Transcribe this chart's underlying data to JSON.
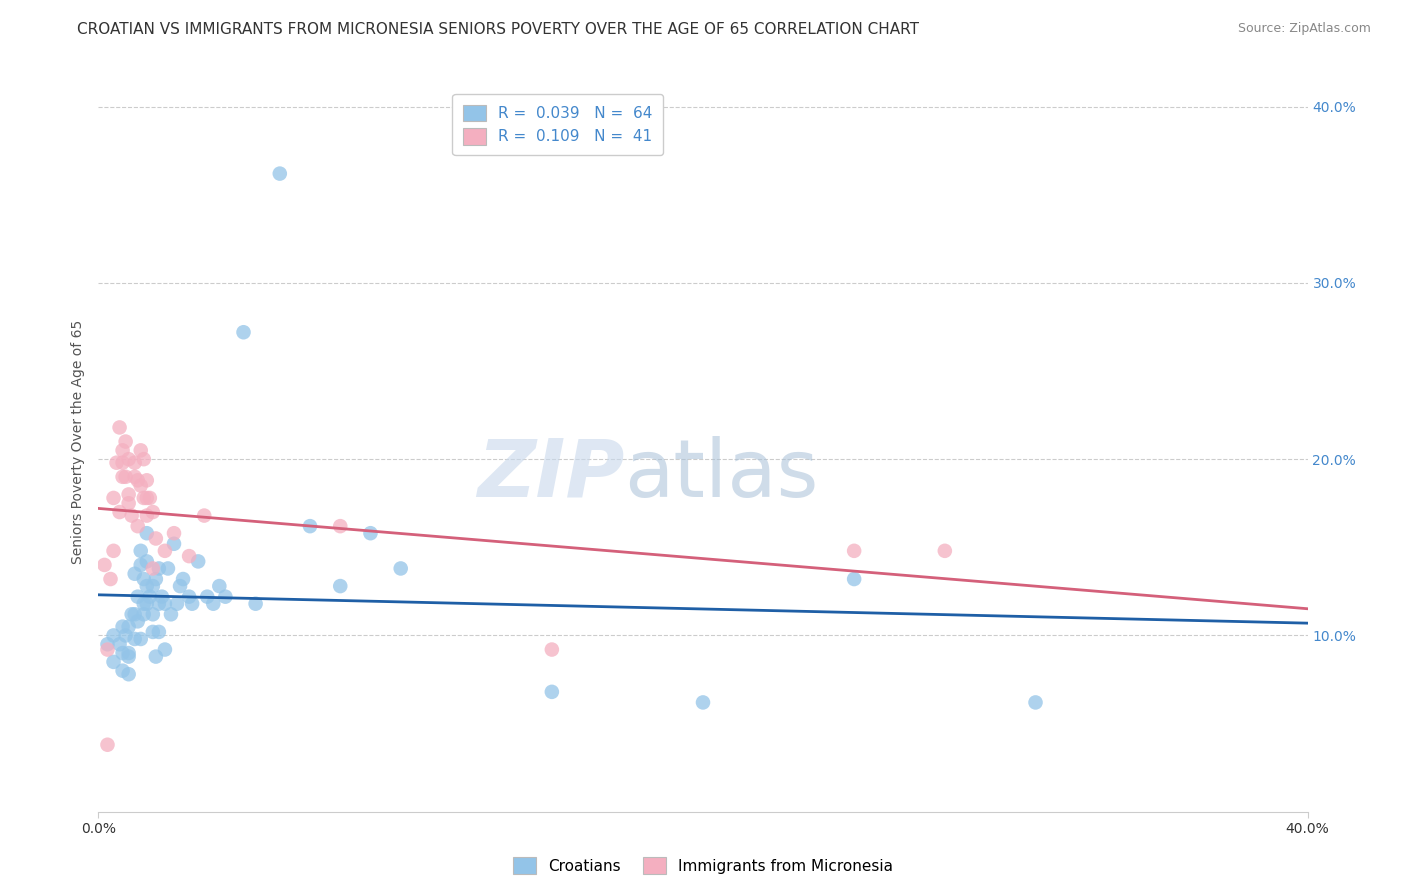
{
  "title": "CROATIAN VS IMMIGRANTS FROM MICRONESIA SENIORS POVERTY OVER THE AGE OF 65 CORRELATION CHART",
  "source": "Source: ZipAtlas.com",
  "ylabel": "Seniors Poverty Over the Age of 65",
  "xlim": [
    0.0,
    0.4
  ],
  "ylim": [
    0.0,
    0.42
  ],
  "yticks": [
    0.1,
    0.2,
    0.3,
    0.4
  ],
  "ytick_labels": [
    "10.0%",
    "20.0%",
    "30.0%",
    "40.0%"
  ],
  "xtick_labels": [
    "0.0%",
    "40.0%"
  ],
  "xtick_vals": [
    0.0,
    0.4
  ],
  "grid_color": "#cccccc",
  "background_color": "#ffffff",
  "croatian_color": "#93c4e8",
  "micronesia_color": "#f4afc0",
  "croatian_line_color": "#1f5fa6",
  "micronesia_line_color": "#d4607a",
  "legend_label_color": "#4488cc",
  "tick_color": "#4488cc",
  "croatian_scatter": [
    [
      0.003,
      0.095
    ],
    [
      0.005,
      0.085
    ],
    [
      0.005,
      0.1
    ],
    [
      0.007,
      0.095
    ],
    [
      0.008,
      0.08
    ],
    [
      0.008,
      0.09
    ],
    [
      0.008,
      0.105
    ],
    [
      0.009,
      0.1
    ],
    [
      0.01,
      0.09
    ],
    [
      0.01,
      0.105
    ],
    [
      0.01,
      0.088
    ],
    [
      0.01,
      0.078
    ],
    [
      0.011,
      0.112
    ],
    [
      0.012,
      0.112
    ],
    [
      0.012,
      0.098
    ],
    [
      0.012,
      0.135
    ],
    [
      0.013,
      0.122
    ],
    [
      0.013,
      0.108
    ],
    [
      0.014,
      0.098
    ],
    [
      0.014,
      0.14
    ],
    [
      0.014,
      0.148
    ],
    [
      0.015,
      0.118
    ],
    [
      0.015,
      0.132
    ],
    [
      0.015,
      0.112
    ],
    [
      0.016,
      0.128
    ],
    [
      0.016,
      0.118
    ],
    [
      0.016,
      0.142
    ],
    [
      0.016,
      0.158
    ],
    [
      0.017,
      0.122
    ],
    [
      0.018,
      0.128
    ],
    [
      0.018,
      0.112
    ],
    [
      0.018,
      0.102
    ],
    [
      0.019,
      0.088
    ],
    [
      0.019,
      0.132
    ],
    [
      0.02,
      0.118
    ],
    [
      0.02,
      0.102
    ],
    [
      0.02,
      0.138
    ],
    [
      0.021,
      0.122
    ],
    [
      0.022,
      0.092
    ],
    [
      0.022,
      0.118
    ],
    [
      0.023,
      0.138
    ],
    [
      0.024,
      0.112
    ],
    [
      0.025,
      0.152
    ],
    [
      0.026,
      0.118
    ],
    [
      0.027,
      0.128
    ],
    [
      0.028,
      0.132
    ],
    [
      0.03,
      0.122
    ],
    [
      0.031,
      0.118
    ],
    [
      0.033,
      0.142
    ],
    [
      0.036,
      0.122
    ],
    [
      0.038,
      0.118
    ],
    [
      0.04,
      0.128
    ],
    [
      0.042,
      0.122
    ],
    [
      0.048,
      0.272
    ],
    [
      0.052,
      0.118
    ],
    [
      0.06,
      0.362
    ],
    [
      0.07,
      0.162
    ],
    [
      0.08,
      0.128
    ],
    [
      0.09,
      0.158
    ],
    [
      0.1,
      0.138
    ],
    [
      0.15,
      0.068
    ],
    [
      0.2,
      0.062
    ],
    [
      0.25,
      0.132
    ],
    [
      0.31,
      0.062
    ]
  ],
  "micronesia_scatter": [
    [
      0.002,
      0.14
    ],
    [
      0.004,
      0.132
    ],
    [
      0.005,
      0.148
    ],
    [
      0.005,
      0.178
    ],
    [
      0.006,
      0.198
    ],
    [
      0.007,
      0.218
    ],
    [
      0.007,
      0.17
    ],
    [
      0.008,
      0.205
    ],
    [
      0.008,
      0.19
    ],
    [
      0.008,
      0.198
    ],
    [
      0.009,
      0.21
    ],
    [
      0.009,
      0.19
    ],
    [
      0.01,
      0.175
    ],
    [
      0.01,
      0.2
    ],
    [
      0.01,
      0.18
    ],
    [
      0.011,
      0.168
    ],
    [
      0.012,
      0.198
    ],
    [
      0.012,
      0.19
    ],
    [
      0.013,
      0.188
    ],
    [
      0.013,
      0.162
    ],
    [
      0.014,
      0.205
    ],
    [
      0.014,
      0.185
    ],
    [
      0.015,
      0.2
    ],
    [
      0.015,
      0.178
    ],
    [
      0.016,
      0.188
    ],
    [
      0.016,
      0.168
    ],
    [
      0.017,
      0.178
    ],
    [
      0.018,
      0.17
    ],
    [
      0.019,
      0.155
    ],
    [
      0.003,
      0.092
    ],
    [
      0.016,
      0.178
    ],
    [
      0.018,
      0.138
    ],
    [
      0.022,
      0.148
    ],
    [
      0.025,
      0.158
    ],
    [
      0.03,
      0.145
    ],
    [
      0.035,
      0.168
    ],
    [
      0.08,
      0.162
    ],
    [
      0.15,
      0.092
    ],
    [
      0.25,
      0.148
    ],
    [
      0.28,
      0.148
    ],
    [
      0.003,
      0.038
    ]
  ],
  "title_fontsize": 11,
  "source_fontsize": 9,
  "tick_fontsize": 10,
  "legend_fontsize": 11
}
